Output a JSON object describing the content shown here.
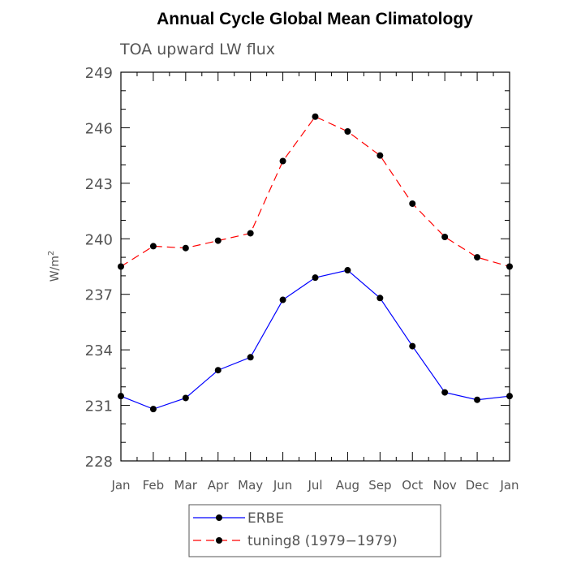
{
  "chart_data": {
    "type": "line",
    "title": "Annual Cycle Global Mean Climatology",
    "subtitle": "TOA upward LW flux",
    "ylabel_base": "W/m",
    "ylabel_sup": "2",
    "xlabel": "",
    "categories": [
      "Jan",
      "Feb",
      "Mar",
      "Apr",
      "May",
      "Jun",
      "Jul",
      "Aug",
      "Sep",
      "Oct",
      "Nov",
      "Dec",
      "Jan"
    ],
    "ylim": [
      228,
      249
    ],
    "yticks": [
      228,
      231,
      234,
      237,
      240,
      243,
      246,
      249
    ],
    "yticks_labels": [
      "228",
      "231",
      "234",
      "237",
      "240",
      "243",
      "246",
      "249"
    ],
    "series": [
      {
        "name": "ERBE",
        "color": "#0000ff",
        "dash": "solid",
        "values": [
          231.5,
          230.8,
          231.4,
          232.9,
          233.6,
          236.7,
          237.9,
          238.3,
          236.8,
          234.2,
          231.7,
          231.3,
          231.5
        ]
      },
      {
        "name": "tuning8 (1979−1979)",
        "color": "#ff0000",
        "dash": "dashed",
        "values": [
          238.5,
          239.6,
          239.5,
          239.9,
          240.3,
          244.2,
          246.6,
          245.8,
          244.5,
          241.9,
          240.1,
          239.0,
          238.5
        ]
      }
    ],
    "legend_position": "bottom-center",
    "grid": false
  }
}
